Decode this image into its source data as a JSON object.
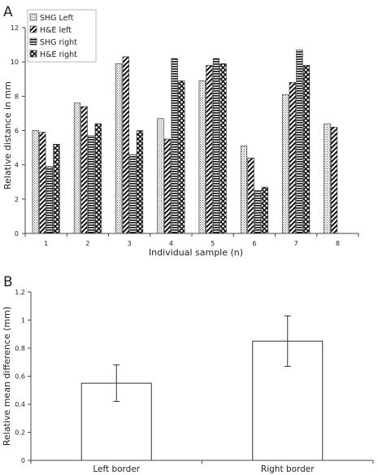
{
  "panel_a_label": "A",
  "panel_b_label": "B",
  "chart_data": [
    {
      "type": "bar",
      "title": "",
      "xlabel": "Individual sample (n)",
      "ylabel": "Relative distance in mm",
      "ylim": [
        0,
        12
      ],
      "yticks": [
        0,
        2,
        4,
        6,
        8,
        10,
        12
      ],
      "categories": [
        "1",
        "2",
        "3",
        "4",
        "5",
        "6",
        "7",
        "8"
      ],
      "legend_position": "top-left",
      "grid": false,
      "series": [
        {
          "name": "SHG Left",
          "pattern": "dots",
          "values": [
            6.0,
            7.6,
            9.9,
            6.7,
            8.9,
            5.1,
            8.1,
            6.4
          ]
        },
        {
          "name": "H&E left",
          "pattern": "diagonal",
          "values": [
            5.9,
            7.4,
            10.3,
            5.5,
            9.8,
            4.4,
            8.8,
            6.2
          ]
        },
        {
          "name": "SHG right",
          "pattern": "horizontal",
          "values": [
            3.9,
            5.7,
            4.6,
            10.2,
            10.2,
            2.5,
            10.7,
            null
          ]
        },
        {
          "name": "H&E right",
          "pattern": "crosshatch",
          "values": [
            5.2,
            6.4,
            6.0,
            8.9,
            9.9,
            2.7,
            9.8,
            null
          ]
        }
      ]
    },
    {
      "type": "bar",
      "title": "",
      "xlabel": "",
      "ylabel": "Relative mean difference (mm)",
      "ylim": [
        0,
        1.2
      ],
      "yticks": [
        0,
        0.2,
        0.4,
        0.6,
        0.8,
        1,
        1.2
      ],
      "categories": [
        "Left border",
        "Right border"
      ],
      "grid": false,
      "values": [
        0.55,
        0.85
      ],
      "errors": [
        0.13,
        0.18
      ]
    }
  ]
}
